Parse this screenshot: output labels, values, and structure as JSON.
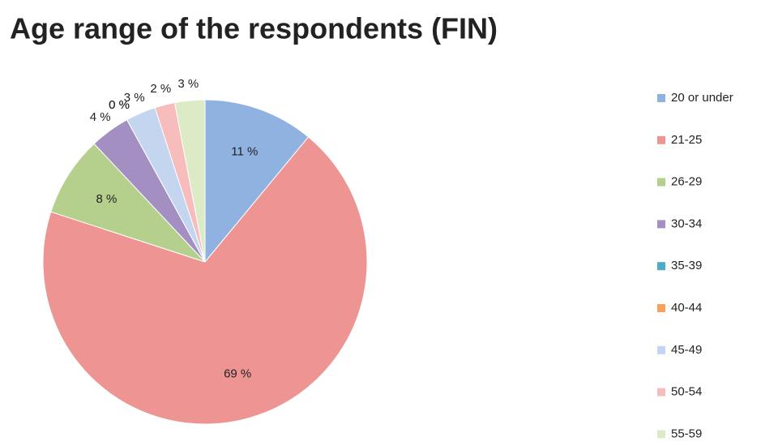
{
  "chart_data": {
    "type": "pie",
    "title": "Age range of the respondents (FIN)",
    "categories": [
      "20 or under",
      "21-25",
      "26-29",
      "30-34",
      "35-39",
      "40-44",
      "45-49",
      "50-54",
      "55-59"
    ],
    "values": [
      11,
      69,
      8,
      4,
      0,
      0,
      3,
      2,
      3
    ],
    "value_labels": [
      "11 %",
      "69 %",
      "8 %",
      "4 %",
      "0 %",
      "0 %",
      "3 %",
      "2 %",
      "3 %"
    ],
    "colors": [
      "#8fb2e0",
      "#ee9593",
      "#b5d08c",
      "#a48fc2",
      "#4bacc6",
      "#f7a25a",
      "#c3d5ef",
      "#f7bdbd",
      "#dcebc6"
    ],
    "legend": "right"
  }
}
